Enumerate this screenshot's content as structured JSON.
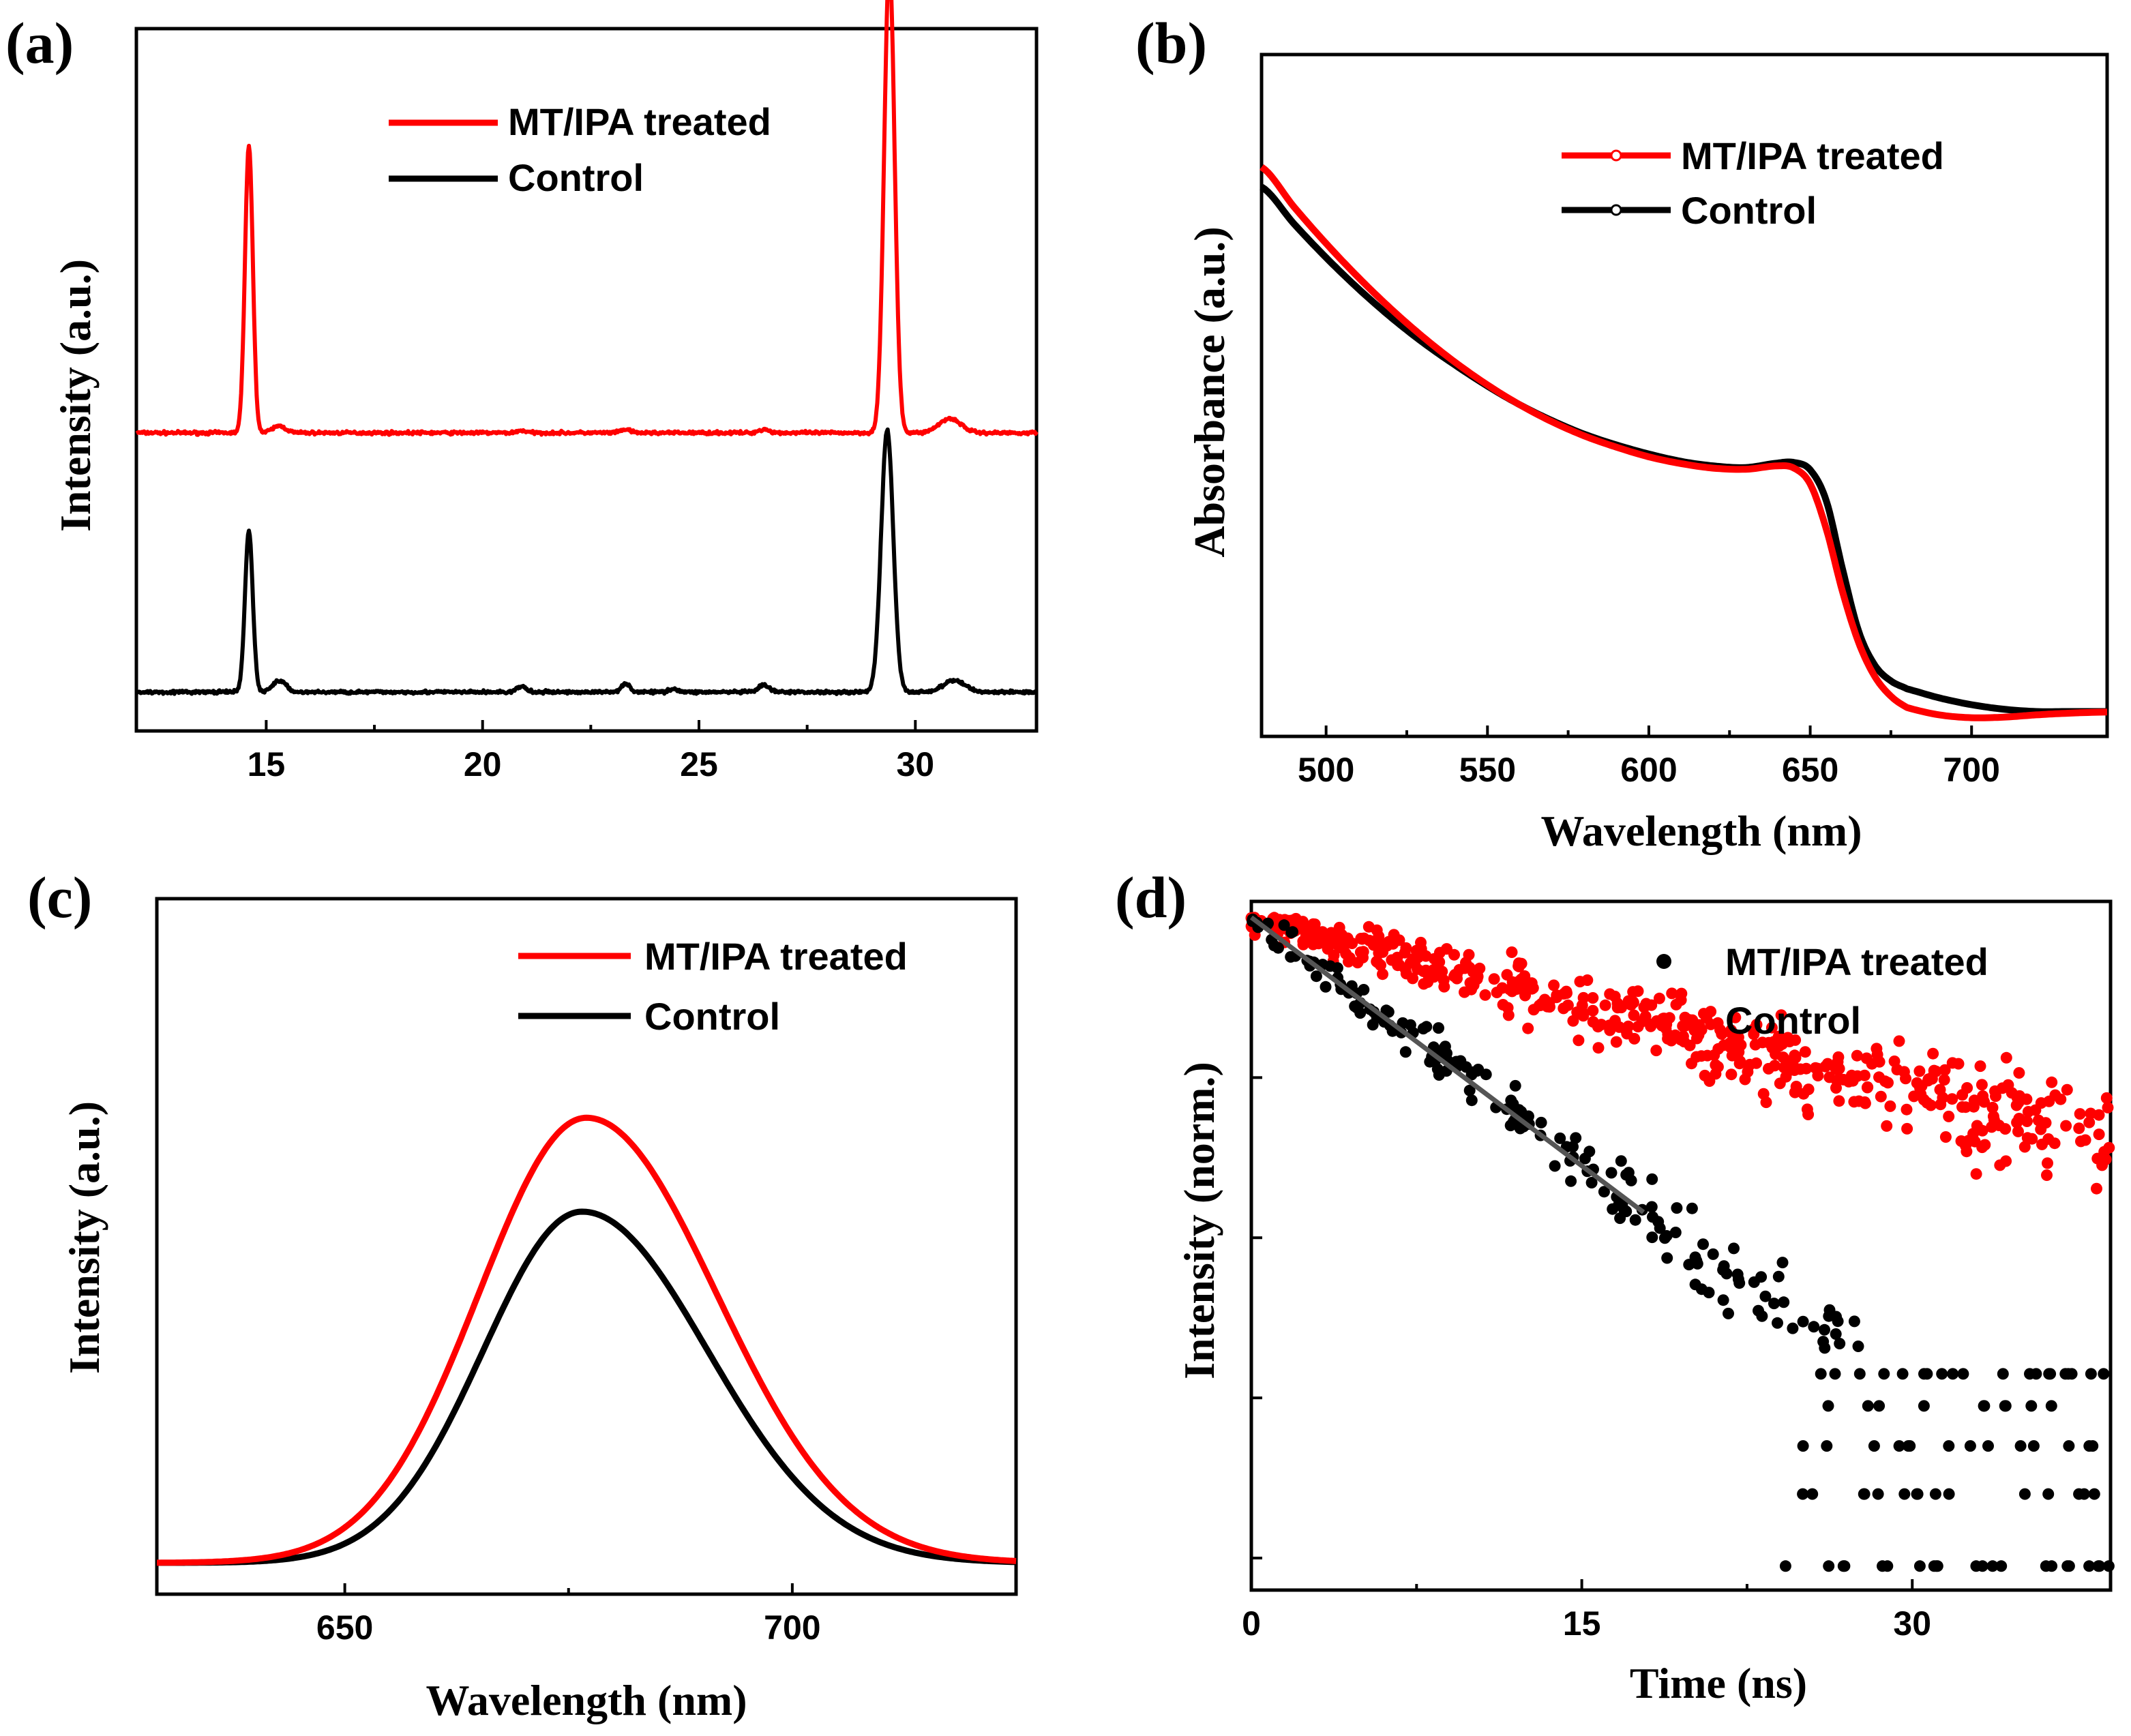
{
  "colors": {
    "treated": "#ff0000",
    "control": "#000000",
    "fit": "#555555"
  },
  "chart_data": [
    {
      "panel": "(a)",
      "type": "line",
      "xlabel": "",
      "ylabel": "Intensity (a.u.)",
      "xlim": [
        12,
        32.8
      ],
      "ylim": [
        0,
        1
      ],
      "xticks": [
        15,
        20,
        25,
        30
      ],
      "legend": [
        "MT/IPA treated",
        "Control"
      ],
      "legend_position": "top-center",
      "series": [
        {
          "name": "MT/IPA treated",
          "color": "red",
          "baseline": 0.45,
          "noise": 0.002,
          "peaks": [
            [
              14.6,
              0.5,
              0.09
            ],
            [
              15.3,
              0.012,
              0.15
            ],
            [
              20.9,
              0.004,
              0.1
            ],
            [
              23.3,
              0.006,
              0.1
            ],
            [
              26.5,
              0.006,
              0.12
            ],
            [
              29.4,
              0.815,
              0.12
            ],
            [
              30.8,
              0.025,
              0.25
            ]
          ]
        },
        {
          "name": "Control",
          "color": "black",
          "baseline": 0.0,
          "noise": 0.002,
          "peaks": [
            [
              14.6,
              0.28,
              0.09
            ],
            [
              15.3,
              0.02,
              0.15
            ],
            [
              20.9,
              0.01,
              0.1
            ],
            [
              23.3,
              0.015,
              0.1
            ],
            [
              24.4,
              0.006,
              0.1
            ],
            [
              26.5,
              0.012,
              0.12
            ],
            [
              29.35,
              0.455,
              0.14
            ],
            [
              30.9,
              0.02,
              0.25
            ]
          ]
        }
      ]
    },
    {
      "panel": "(b)",
      "type": "line",
      "xlabel": "Wavelength (nm)",
      "ylabel": "Absorbance (a.u.)",
      "xlim": [
        480,
        742
      ],
      "ylim": [
        0,
        1
      ],
      "xticks": [
        500,
        550,
        600,
        650,
        700
      ],
      "legend": [
        "MT/IPA treated",
        "Control"
      ],
      "legend_position": "top-right",
      "series": [
        {
          "name": "MT/IPA treated",
          "color": "red",
          "x": [
            480,
            490,
            500,
            510,
            520,
            530,
            540,
            550,
            560,
            570,
            580,
            590,
            600,
            610,
            620,
            630,
            640,
            645,
            650,
            655,
            660,
            665,
            670,
            675,
            680,
            690,
            700,
            710,
            720,
            730,
            742
          ],
          "y": [
            1.0,
            0.93,
            0.865,
            0.805,
            0.75,
            0.7,
            0.655,
            0.615,
            0.58,
            0.55,
            0.525,
            0.505,
            0.488,
            0.476,
            0.468,
            0.466,
            0.472,
            0.468,
            0.44,
            0.36,
            0.25,
            0.16,
            0.1,
            0.065,
            0.045,
            0.032,
            0.027,
            0.028,
            0.032,
            0.035,
            0.037
          ]
        },
        {
          "name": "Control",
          "color": "black",
          "x": [
            480,
            490,
            500,
            510,
            520,
            530,
            540,
            550,
            560,
            570,
            580,
            590,
            600,
            610,
            620,
            630,
            640,
            645,
            650,
            655,
            660,
            665,
            670,
            675,
            680,
            690,
            700,
            710,
            720,
            730,
            742
          ],
          "y": [
            0.965,
            0.9,
            0.84,
            0.785,
            0.735,
            0.69,
            0.65,
            0.613,
            0.58,
            0.552,
            0.528,
            0.509,
            0.493,
            0.48,
            0.472,
            0.469,
            0.477,
            0.478,
            0.465,
            0.41,
            0.29,
            0.18,
            0.12,
            0.092,
            0.078,
            0.062,
            0.05,
            0.042,
            0.038,
            0.038,
            0.038
          ]
        }
      ]
    },
    {
      "panel": "(c)",
      "type": "line",
      "xlabel": "Wavelength (nm)",
      "ylabel": "Intensity (a.u.)",
      "xlim": [
        629,
        725
      ],
      "ylim": [
        0,
        1
      ],
      "xticks": [
        650,
        700
      ],
      "legend": [
        "MT/IPA treated",
        "Control"
      ],
      "legend_position": "top-right",
      "series": [
        {
          "name": "MT/IPA treated",
          "color": "red",
          "center": 677,
          "amplitude": 0.64,
          "sigma_left": 12.0,
          "sigma_right": 14.5,
          "offset": 0.045
        },
        {
          "name": "Control",
          "color": "black",
          "center": 676.5,
          "amplitude": 0.505,
          "sigma_left": 11.0,
          "sigma_right": 14.0,
          "offset": 0.045
        }
      ]
    },
    {
      "panel": "(d)",
      "type": "scatter",
      "xlabel": "Time (ns)",
      "ylabel": "Intensity (norm.)",
      "xlim": [
        0,
        39
      ],
      "ylim": [
        -4.2,
        0.1
      ],
      "yscale": "log",
      "xticks": [
        0,
        15,
        30
      ],
      "legend": [
        "MT/IPA treated",
        "Control"
      ],
      "legend_position": "top-right",
      "series": [
        {
          "name": "MT/IPA treated",
          "color": "black",
          "tau_ns": 4.2,
          "points": 260,
          "floor_levels": [
            -4.05,
            -3.6,
            -3.3,
            -3.05,
            -2.85
          ]
        },
        {
          "name": "Control",
          "color": "red",
          "tau_ns": 12.0,
          "points": 520,
          "floor_levels": [
            -4.05,
            -3.6,
            -3.3,
            -3.05,
            -2.85
          ]
        },
        {
          "name": "fit",
          "color": "gray",
          "tau_ns": 4.2,
          "x_end": 17.8
        }
      ]
    }
  ]
}
